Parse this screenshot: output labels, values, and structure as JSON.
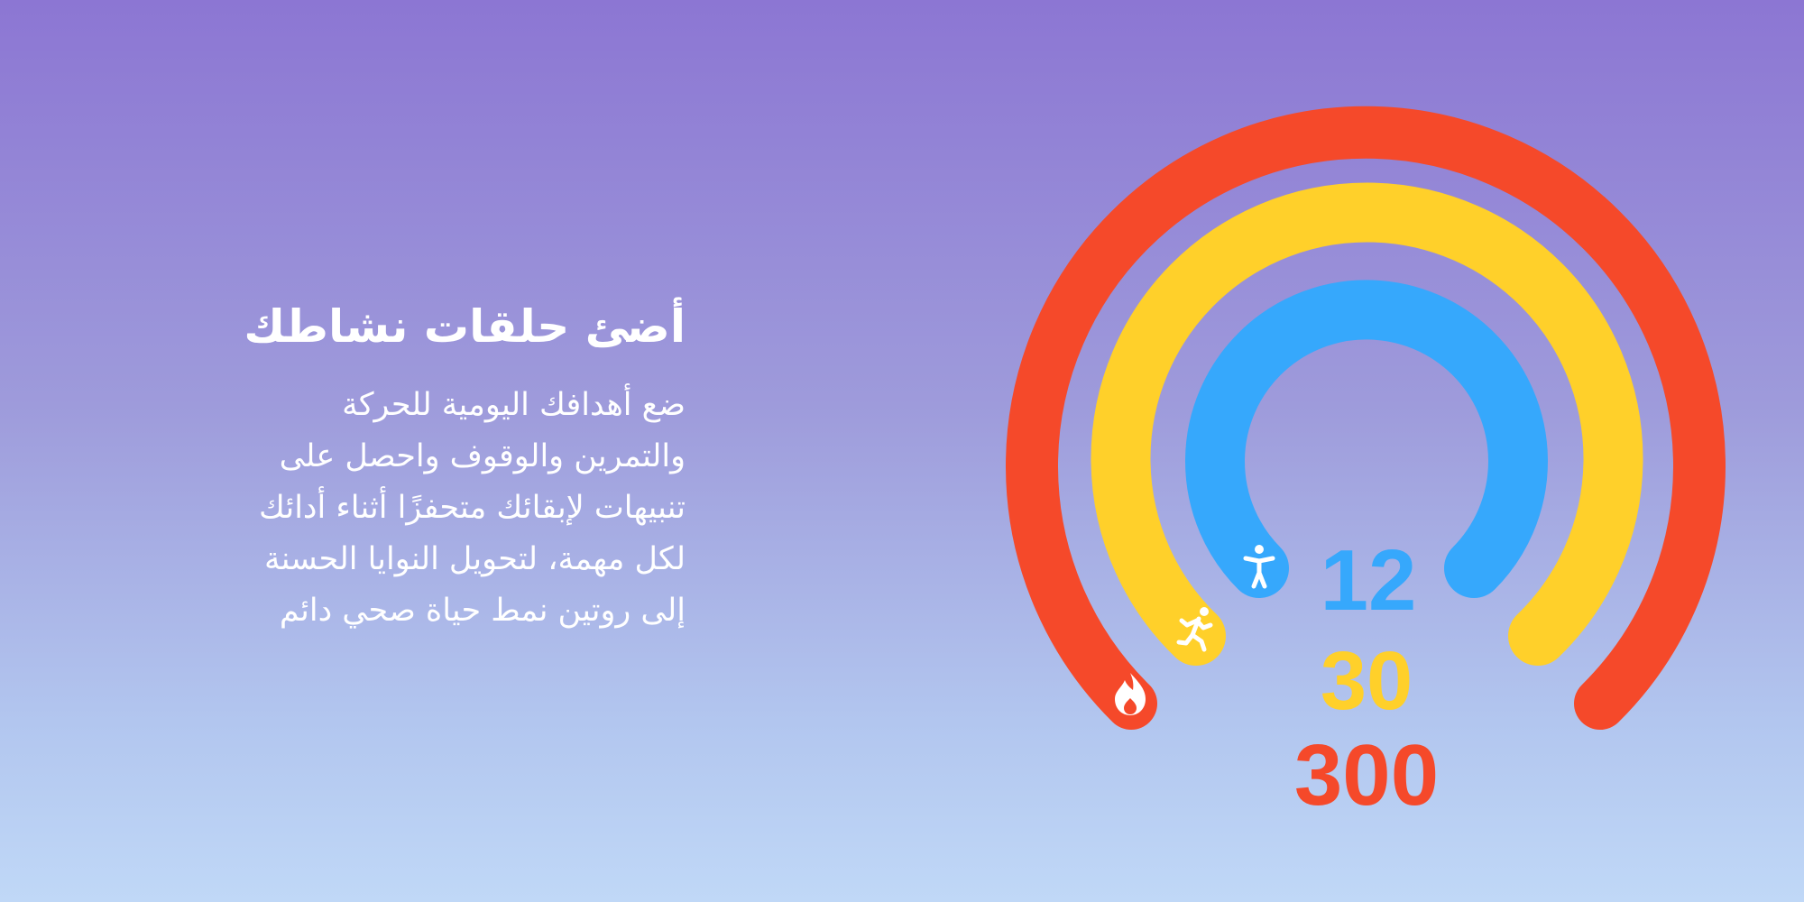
{
  "headline": "أضئ حلقات نشاطك",
  "body_lines": [
    "ضع أهدافك اليومية للحركة",
    "والتمرين والوقوف واحصل على",
    "تنبيهات لإبقائك متحفزًا أثناء أدائك",
    "لكل مهمة، لتحويل النوايا الحسنة",
    "إلى روتين نمط حياة صحي دائم"
  ],
  "rings": {
    "move": {
      "value": "300",
      "color": "#F5492A",
      "icon": "flame-icon"
    },
    "exercise": {
      "value": "30",
      "color": "#FFD02A",
      "icon": "running-figure-icon"
    },
    "stand": {
      "value": "12",
      "color": "#36A8FC",
      "icon": "standing-figure-icon"
    }
  },
  "colors": {
    "background_top": "#8C76D3",
    "background_bottom": "#C0D8F7",
    "text": "#FFFFFF"
  }
}
